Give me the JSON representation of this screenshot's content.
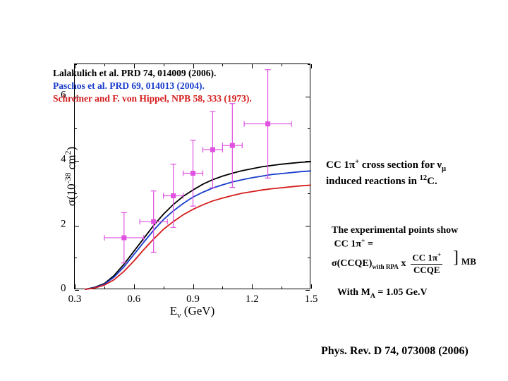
{
  "chart": {
    "type": "line+scatter",
    "xlim": [
      0.3,
      1.5
    ],
    "ylim": [
      0,
      7
    ],
    "xticks": [
      0.3,
      0.6,
      0.9,
      1.2,
      1.5
    ],
    "yticks": [
      0,
      2,
      4,
      6
    ],
    "xtick_minors": [
      0.45,
      0.75,
      1.05,
      1.35
    ],
    "ytick_minors": [
      1,
      3,
      5,
      7
    ],
    "axis_title_x": "Eν (GeV)",
    "axis_title_y": "σ(10⁻³⁸ cm²)",
    "title_fontsize": 17,
    "tick_fontsize": 15,
    "background_color": "#ffffff",
    "border_color": "#000000",
    "lines": [
      {
        "name": "lalakulich",
        "color": "#000000",
        "width": 1.8,
        "points": [
          [
            0.35,
            0.02
          ],
          [
            0.4,
            0.08
          ],
          [
            0.45,
            0.2
          ],
          [
            0.5,
            0.45
          ],
          [
            0.55,
            0.8
          ],
          [
            0.6,
            1.2
          ],
          [
            0.65,
            1.6
          ],
          [
            0.7,
            2.0
          ],
          [
            0.75,
            2.35
          ],
          [
            0.8,
            2.65
          ],
          [
            0.85,
            2.9
          ],
          [
            0.9,
            3.1
          ],
          [
            0.95,
            3.28
          ],
          [
            1.0,
            3.42
          ],
          [
            1.05,
            3.53
          ],
          [
            1.1,
            3.62
          ],
          [
            1.15,
            3.7
          ],
          [
            1.2,
            3.76
          ],
          [
            1.25,
            3.82
          ],
          [
            1.3,
            3.86
          ],
          [
            1.35,
            3.9
          ],
          [
            1.4,
            3.93
          ],
          [
            1.45,
            3.96
          ],
          [
            1.5,
            3.98
          ]
        ]
      },
      {
        "name": "paschos",
        "color": "#1a3dcc",
        "width": 1.8,
        "points": [
          [
            0.35,
            0.02
          ],
          [
            0.4,
            0.07
          ],
          [
            0.45,
            0.18
          ],
          [
            0.5,
            0.4
          ],
          [
            0.55,
            0.72
          ],
          [
            0.6,
            1.1
          ],
          [
            0.65,
            1.48
          ],
          [
            0.7,
            1.85
          ],
          [
            0.75,
            2.18
          ],
          [
            0.8,
            2.45
          ],
          [
            0.85,
            2.68
          ],
          [
            0.9,
            2.88
          ],
          [
            0.95,
            3.03
          ],
          [
            1.0,
            3.16
          ],
          [
            1.05,
            3.26
          ],
          [
            1.1,
            3.35
          ],
          [
            1.15,
            3.42
          ],
          [
            1.2,
            3.48
          ],
          [
            1.25,
            3.53
          ],
          [
            1.3,
            3.58
          ],
          [
            1.35,
            3.61
          ],
          [
            1.4,
            3.64
          ],
          [
            1.45,
            3.67
          ],
          [
            1.5,
            3.69
          ]
        ]
      },
      {
        "name": "schreiner",
        "color": "#d41c1c",
        "width": 1.8,
        "points": [
          [
            0.35,
            0.02
          ],
          [
            0.4,
            0.06
          ],
          [
            0.45,
            0.15
          ],
          [
            0.5,
            0.32
          ],
          [
            0.55,
            0.58
          ],
          [
            0.6,
            0.9
          ],
          [
            0.65,
            1.25
          ],
          [
            0.7,
            1.58
          ],
          [
            0.75,
            1.88
          ],
          [
            0.8,
            2.12
          ],
          [
            0.85,
            2.33
          ],
          [
            0.9,
            2.5
          ],
          [
            0.95,
            2.64
          ],
          [
            1.0,
            2.76
          ],
          [
            1.05,
            2.85
          ],
          [
            1.1,
            2.93
          ],
          [
            1.15,
            3.0
          ],
          [
            1.2,
            3.05
          ],
          [
            1.25,
            3.1
          ],
          [
            1.3,
            3.14
          ],
          [
            1.35,
            3.17
          ],
          [
            1.4,
            3.2
          ],
          [
            1.45,
            3.23
          ],
          [
            1.5,
            3.25
          ]
        ]
      }
    ],
    "scatter": {
      "color": "#e052e0",
      "marker": "square",
      "marker_size": 7,
      "error_cap": 4,
      "points": [
        {
          "x": 0.55,
          "y": 1.62,
          "xerr": 0.1,
          "yerr": 0.78
        },
        {
          "x": 0.7,
          "y": 2.12,
          "xerr": 0.07,
          "yerr": 0.95
        },
        {
          "x": 0.8,
          "y": 2.92,
          "xerr": 0.05,
          "yerr": 0.98
        },
        {
          "x": 0.9,
          "y": 3.62,
          "xerr": 0.05,
          "yerr": 1.02
        },
        {
          "x": 1.0,
          "y": 4.35,
          "xerr": 0.05,
          "yerr": 1.18
        },
        {
          "x": 1.1,
          "y": 4.48,
          "xerr": 0.05,
          "yerr": 1.3
        },
        {
          "x": 1.28,
          "y": 5.15,
          "xerr": 0.12,
          "yerr": 1.68
        }
      ]
    }
  },
  "legend": {
    "items": [
      {
        "color": "#000000",
        "text": "Lalakulich et al. PRD 74, 014009 (2006)."
      },
      {
        "color": "#1a3dcc",
        "text": "Paschos et al. PRD 69, 014013 (2004)."
      },
      {
        "color": "#d41c1c",
        "text": "Schreiner and F. von Hippel, NPB 58, 333 (1973)."
      }
    ]
  },
  "annotations": {
    "title_line1": "CC 1π⁺ cross section for νμ",
    "title_line2": "induced reactions in ¹²C.",
    "exp_line1": "The experimental points show",
    "exp_line2": " CC 1π⁺ =",
    "exp_sigma": "σ(CCQE)",
    "exp_sub": "with RPA",
    "exp_x": " x ",
    "frac_num": "CC 1π⁺",
    "frac_den": "CCQE",
    "mb_label": "MB",
    "ma_text": "With Mₐ = 1.05 Ge.V",
    "ref_text": "Phys. Rev. D 74, 073008 (2006)"
  }
}
